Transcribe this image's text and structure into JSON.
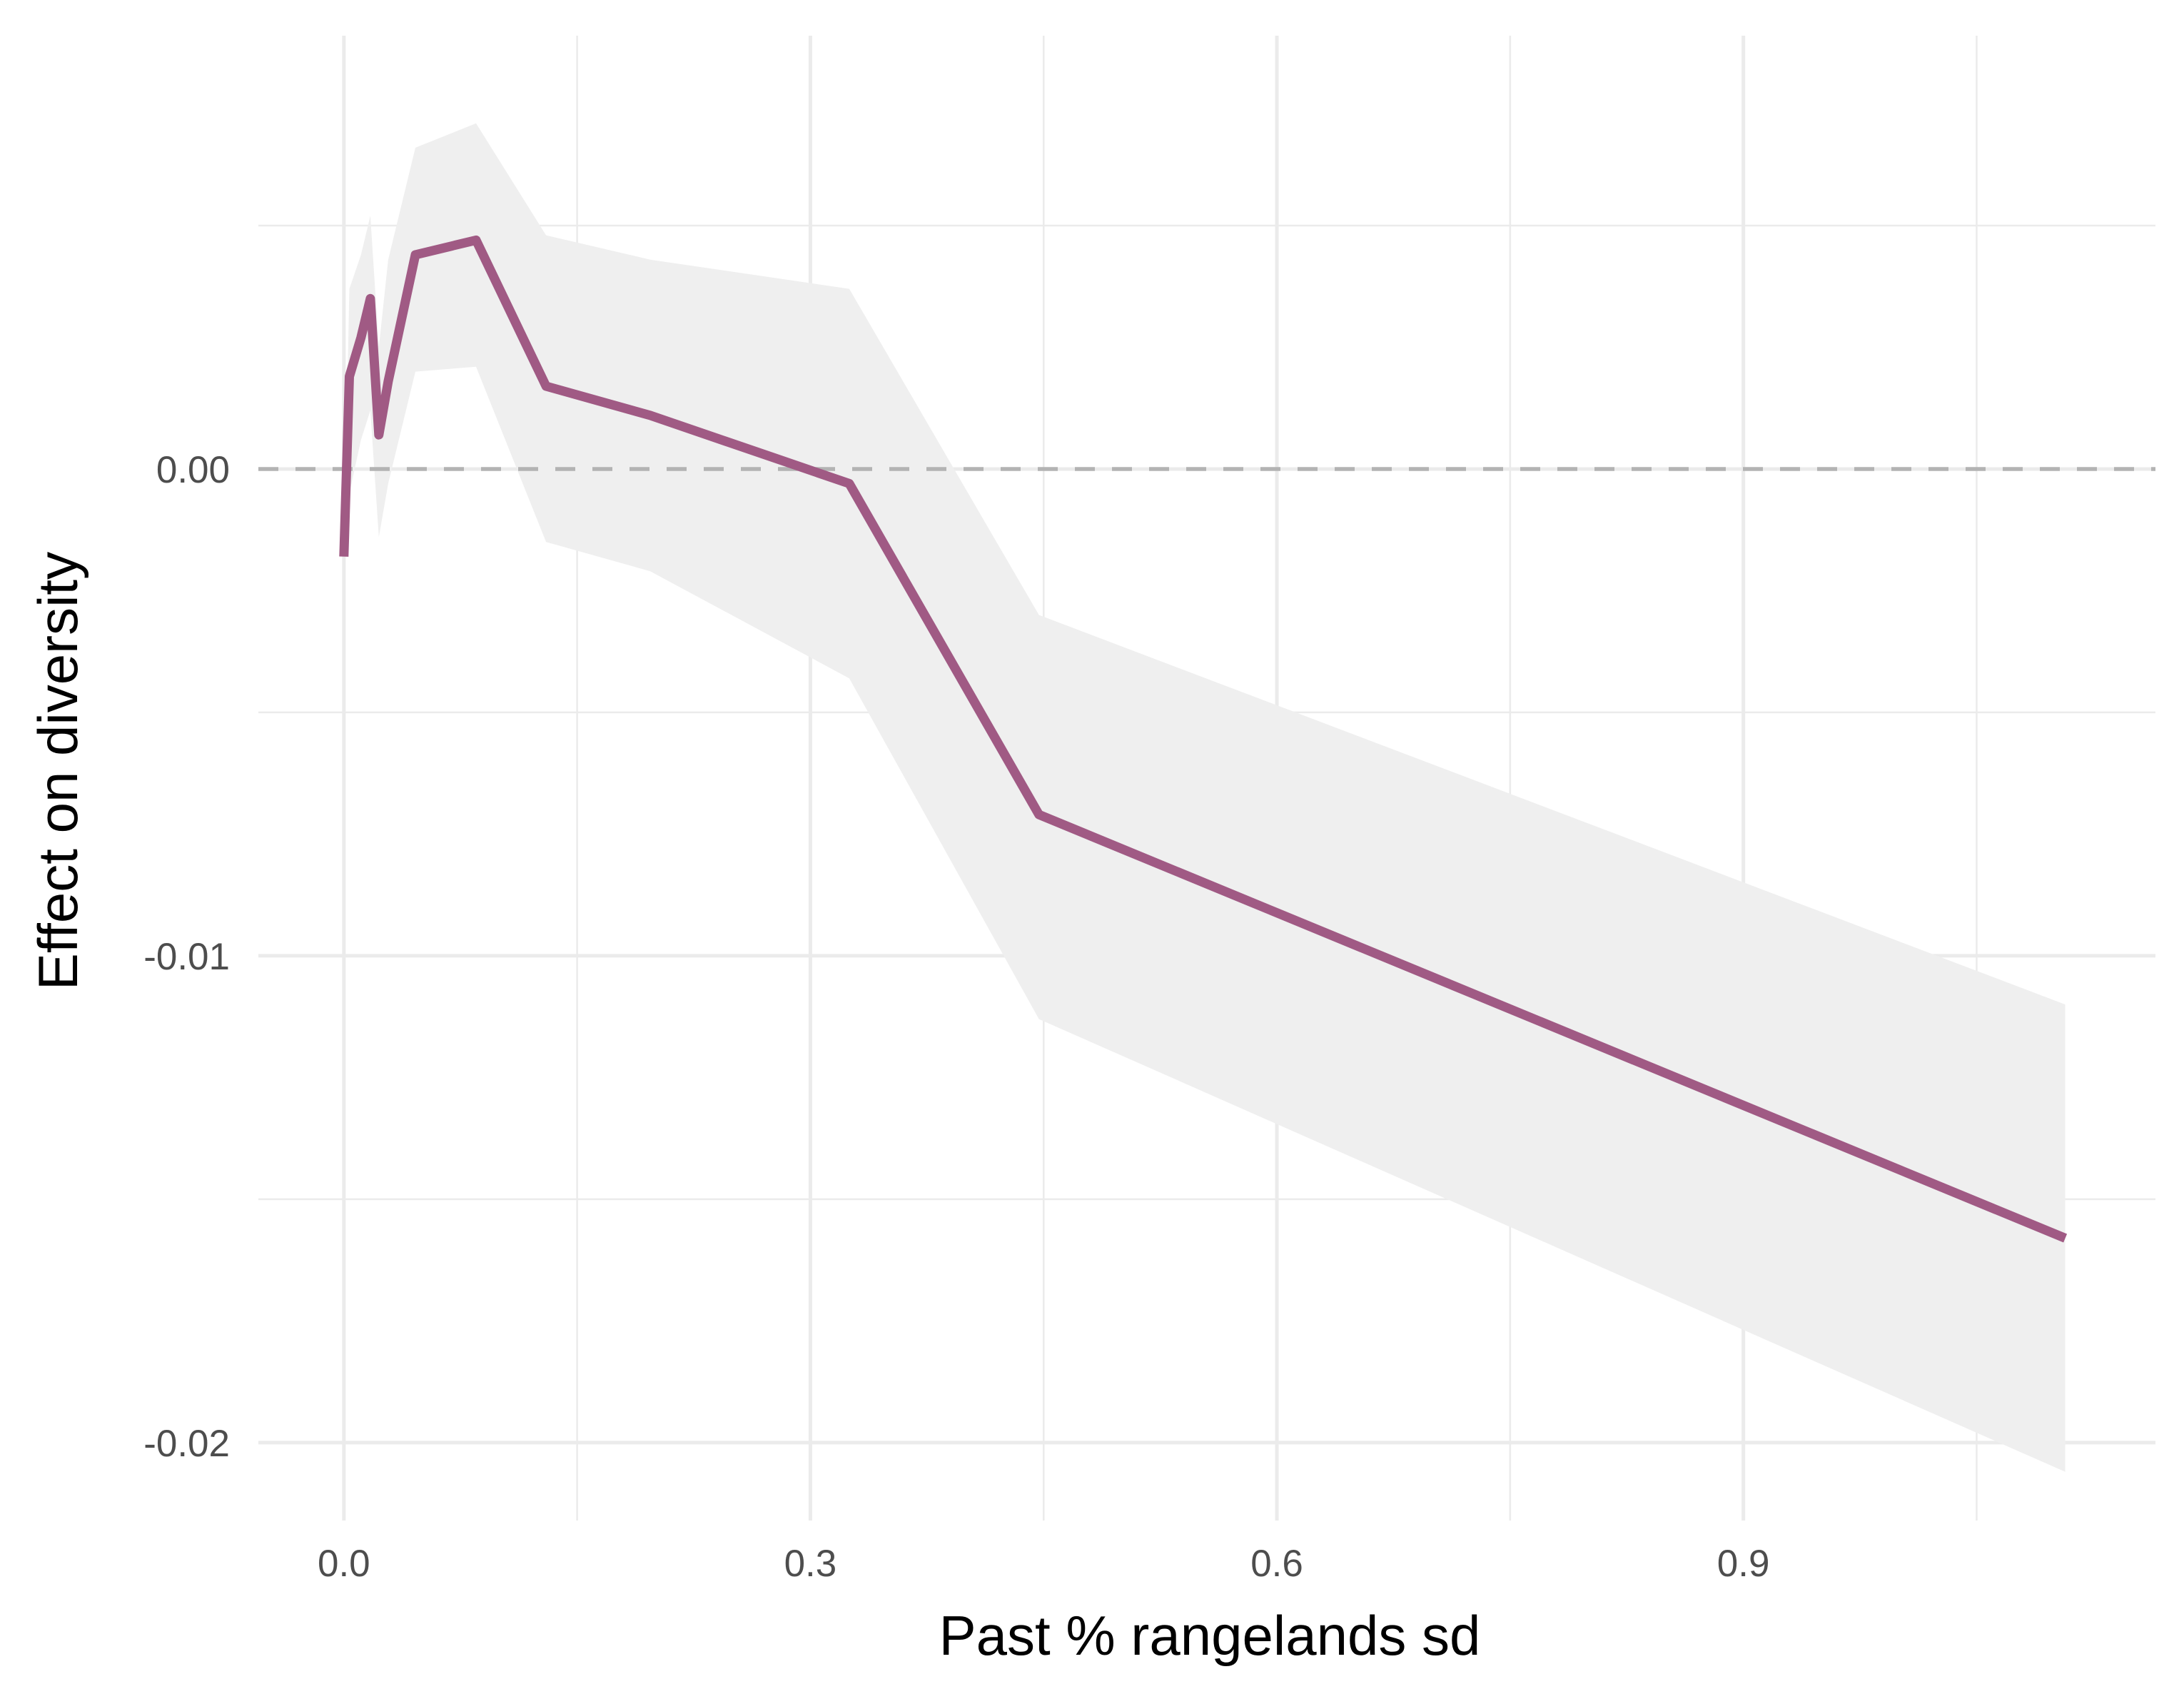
{
  "chart_data": {
    "type": "line",
    "title": "",
    "xlabel": "Past % rangelands sd",
    "ylabel": "Effect on diversity",
    "xlim": [
      -0.055,
      1.165
    ],
    "ylim": [
      -0.0216,
      0.0089
    ],
    "x_ticks": [
      0.0,
      0.3,
      0.6,
      0.9
    ],
    "x_tick_labels": [
      "0.0",
      "0.3",
      "0.6",
      "0.9"
    ],
    "x_minor_ticks": [
      0.15,
      0.45,
      0.75,
      1.05
    ],
    "y_ticks": [
      0.0,
      -0.01,
      -0.02
    ],
    "y_tick_labels": [
      "0.00",
      "-0.01",
      "-0.02"
    ],
    "y_minor_ticks": [
      0.005,
      -0.005,
      -0.015
    ],
    "grid": true,
    "reference_line": {
      "y": 0.0,
      "style": "dashed",
      "color": "#b3b3b3"
    },
    "series": [
      {
        "color": "#a05a84",
        "band_color": "#efefef",
        "x": [
          0.0,
          0.0035,
          0.011,
          0.017,
          0.0225,
          0.0285,
          0.046,
          0.085,
          0.13,
          0.197,
          0.325,
          0.447,
          1.107
        ],
        "y": [
          -0.0018,
          0.0019,
          0.0027,
          0.0035,
          0.0007,
          0.0018,
          0.0044,
          0.0047,
          0.0017,
          0.0011,
          -0.0003,
          -0.0071,
          -0.0158
        ],
        "lower": [
          -0.0018,
          -0.0005,
          0.0006,
          0.0012,
          -0.0014,
          -0.0003,
          0.002,
          0.0021,
          -0.0015,
          -0.0021,
          -0.0043,
          -0.0113,
          -0.0206
        ],
        "upper": [
          -0.0018,
          0.0037,
          0.0044,
          0.0052,
          0.0025,
          0.0043,
          0.0066,
          0.0071,
          0.0048,
          0.0043,
          0.0037,
          -0.003,
          -0.011
        ]
      }
    ]
  }
}
